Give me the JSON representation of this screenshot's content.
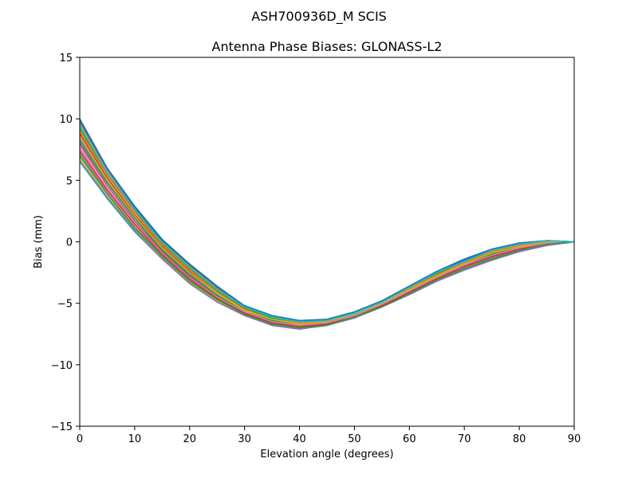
{
  "chart_data": {
    "type": "line",
    "suptitle": "ASH700936D_M    SCIS",
    "title": "Antenna Phase Biases: GLONASS-L2",
    "xlabel": "Elevation angle (degrees)",
    "ylabel": "Bias (mm)",
    "xlim": [
      0,
      90
    ],
    "ylim": [
      -15,
      15
    ],
    "xticks": [
      0,
      10,
      20,
      30,
      40,
      50,
      60,
      70,
      80,
      90
    ],
    "yticks": [
      -15,
      -10,
      -5,
      0,
      5,
      10,
      15
    ],
    "grid": false,
    "x": [
      0,
      5,
      10,
      15,
      20,
      25,
      30,
      35,
      40,
      45,
      50,
      55,
      60,
      65,
      70,
      75,
      80,
      85,
      90
    ],
    "series": [
      {
        "color": "#1f77b4",
        "values": [
          10.0,
          6.0,
          2.9,
          0.2,
          -1.8,
          -3.6,
          -5.2,
          -6.0,
          -6.4,
          -6.3,
          -5.7,
          -4.8,
          -3.6,
          -2.4,
          -1.4,
          -0.6,
          -0.1,
          0.1,
          0.0
        ]
      },
      {
        "color": "#ff7f0e",
        "values": [
          9.6,
          5.8,
          2.7,
          0.0,
          -2.0,
          -3.8,
          -5.3,
          -6.1,
          -6.5,
          -6.4,
          -5.8,
          -4.9,
          -3.7,
          -2.5,
          -1.5,
          -0.7,
          -0.2,
          0.1,
          0.0
        ]
      },
      {
        "color": "#2ca02c",
        "values": [
          9.2,
          5.5,
          2.5,
          -0.2,
          -2.2,
          -4.0,
          -5.4,
          -6.2,
          -6.6,
          -6.4,
          -5.8,
          -4.9,
          -3.8,
          -2.6,
          -1.6,
          -0.8,
          -0.2,
          0.1,
          0.0
        ]
      },
      {
        "color": "#d62728",
        "values": [
          8.8,
          5.2,
          2.2,
          -0.4,
          -2.4,
          -4.2,
          -5.5,
          -6.3,
          -6.7,
          -6.5,
          -5.9,
          -5.0,
          -3.9,
          -2.7,
          -1.7,
          -0.9,
          -0.3,
          0.0,
          0.0
        ]
      },
      {
        "color": "#9467bd",
        "values": [
          8.4,
          4.9,
          2.0,
          -0.6,
          -2.6,
          -4.3,
          -5.6,
          -6.4,
          -6.7,
          -6.5,
          -5.9,
          -5.0,
          -3.9,
          -2.8,
          -1.8,
          -1.0,
          -0.4,
          0.0,
          0.0
        ]
      },
      {
        "color": "#8c564b",
        "values": [
          8.0,
          4.6,
          1.7,
          -0.8,
          -2.8,
          -4.4,
          -5.7,
          -6.5,
          -6.8,
          -6.6,
          -6.0,
          -5.1,
          -4.0,
          -2.9,
          -1.9,
          -1.1,
          -0.5,
          -0.1,
          0.0
        ]
      },
      {
        "color": "#e377c2",
        "values": [
          7.6,
          4.3,
          1.5,
          -1.0,
          -3.0,
          -4.6,
          -5.8,
          -6.6,
          -6.9,
          -6.7,
          -6.0,
          -5.2,
          -4.1,
          -3.0,
          -2.0,
          -1.2,
          -0.6,
          -0.2,
          0.0
        ]
      },
      {
        "color": "#7f7f7f",
        "values": [
          7.2,
          4.0,
          1.2,
          -1.1,
          -3.1,
          -4.7,
          -5.9,
          -6.7,
          -7.0,
          -6.7,
          -6.1,
          -5.2,
          -4.2,
          -3.1,
          -2.1,
          -1.3,
          -0.7,
          -0.2,
          0.0
        ]
      },
      {
        "color": "#bcbd22",
        "values": [
          6.8,
          3.7,
          1.0,
          -1.3,
          -3.3,
          -4.8,
          -6.0,
          -6.8,
          -7.0,
          -6.8,
          -6.1,
          -5.3,
          -4.2,
          -3.2,
          -2.2,
          -1.4,
          -0.8,
          -0.3,
          0.0
        ]
      },
      {
        "color": "#17becf",
        "values": [
          6.5,
          3.5,
          0.8,
          -1.4,
          -3.4,
          -4.9,
          -6.0,
          -6.8,
          -7.1,
          -6.8,
          -6.2,
          -5.3,
          -4.3,
          -3.2,
          -2.3,
          -1.5,
          -0.8,
          -0.3,
          0.0
        ]
      },
      {
        "color": "#1f77b4",
        "values": [
          9.8,
          5.9,
          2.8,
          0.1,
          -1.9,
          -3.7,
          -5.2,
          -6.0,
          -6.5,
          -6.3,
          -5.7,
          -4.8,
          -3.6,
          -2.4,
          -1.5,
          -0.6,
          -0.1,
          0.1,
          0.0
        ]
      },
      {
        "color": "#ff7f0e",
        "values": [
          9.0,
          5.4,
          2.4,
          -0.3,
          -2.3,
          -4.1,
          -5.5,
          -6.3,
          -6.6,
          -6.4,
          -5.8,
          -5.0,
          -3.8,
          -2.7,
          -1.7,
          -0.8,
          -0.3,
          0.0,
          0.0
        ]
      },
      {
        "color": "#2ca02c",
        "values": [
          8.2,
          4.8,
          1.9,
          -0.7,
          -2.7,
          -4.4,
          -5.6,
          -6.4,
          -6.8,
          -6.6,
          -5.9,
          -5.1,
          -4.0,
          -2.8,
          -1.9,
          -1.0,
          -0.4,
          0.0,
          0.0
        ]
      },
      {
        "color": "#d62728",
        "values": [
          7.4,
          4.2,
          1.4,
          -1.0,
          -3.0,
          -4.6,
          -5.8,
          -6.6,
          -6.9,
          -6.7,
          -6.0,
          -5.2,
          -4.1,
          -3.0,
          -2.0,
          -1.2,
          -0.6,
          -0.2,
          0.0
        ]
      },
      {
        "color": "#9467bd",
        "values": [
          6.6,
          3.6,
          0.9,
          -1.4,
          -3.4,
          -4.9,
          -6.0,
          -6.8,
          -7.1,
          -6.8,
          -6.2,
          -5.3,
          -4.3,
          -3.2,
          -2.3,
          -1.5,
          -0.8,
          -0.3,
          0.0
        ]
      },
      {
        "color": "#bcbd22",
        "values": [
          8.6,
          5.0,
          2.1,
          -0.5,
          -2.5,
          -4.2,
          -5.6,
          -6.3,
          -6.7,
          -6.5,
          -5.9,
          -5.0,
          -3.9,
          -2.8,
          -1.8,
          -0.9,
          -0.4,
          0.0,
          0.0
        ]
      },
      {
        "color": "#e377c2",
        "values": [
          7.8,
          4.5,
          1.6,
          -0.9,
          -2.9,
          -4.5,
          -5.7,
          -6.5,
          -6.8,
          -6.6,
          -6.0,
          -5.1,
          -4.0,
          -2.9,
          -1.9,
          -1.1,
          -0.5,
          -0.1,
          0.0
        ]
      },
      {
        "color": "#2ca02c",
        "values": [
          7.0,
          3.9,
          1.1,
          -1.2,
          -3.2,
          -4.7,
          -5.9,
          -6.7,
          -7.0,
          -6.8,
          -6.1,
          -5.3,
          -4.2,
          -3.1,
          -2.2,
          -1.4,
          -0.7,
          -0.2,
          0.0
        ]
      },
      {
        "color": "#17becf",
        "values": [
          9.4,
          5.6,
          2.6,
          -0.1,
          -2.1,
          -3.9,
          -5.3,
          -6.1,
          -6.5,
          -6.4,
          -5.8,
          -4.9,
          -3.7,
          -2.5,
          -1.6,
          -0.7,
          -0.2,
          0.1,
          0.0
        ]
      }
    ]
  }
}
